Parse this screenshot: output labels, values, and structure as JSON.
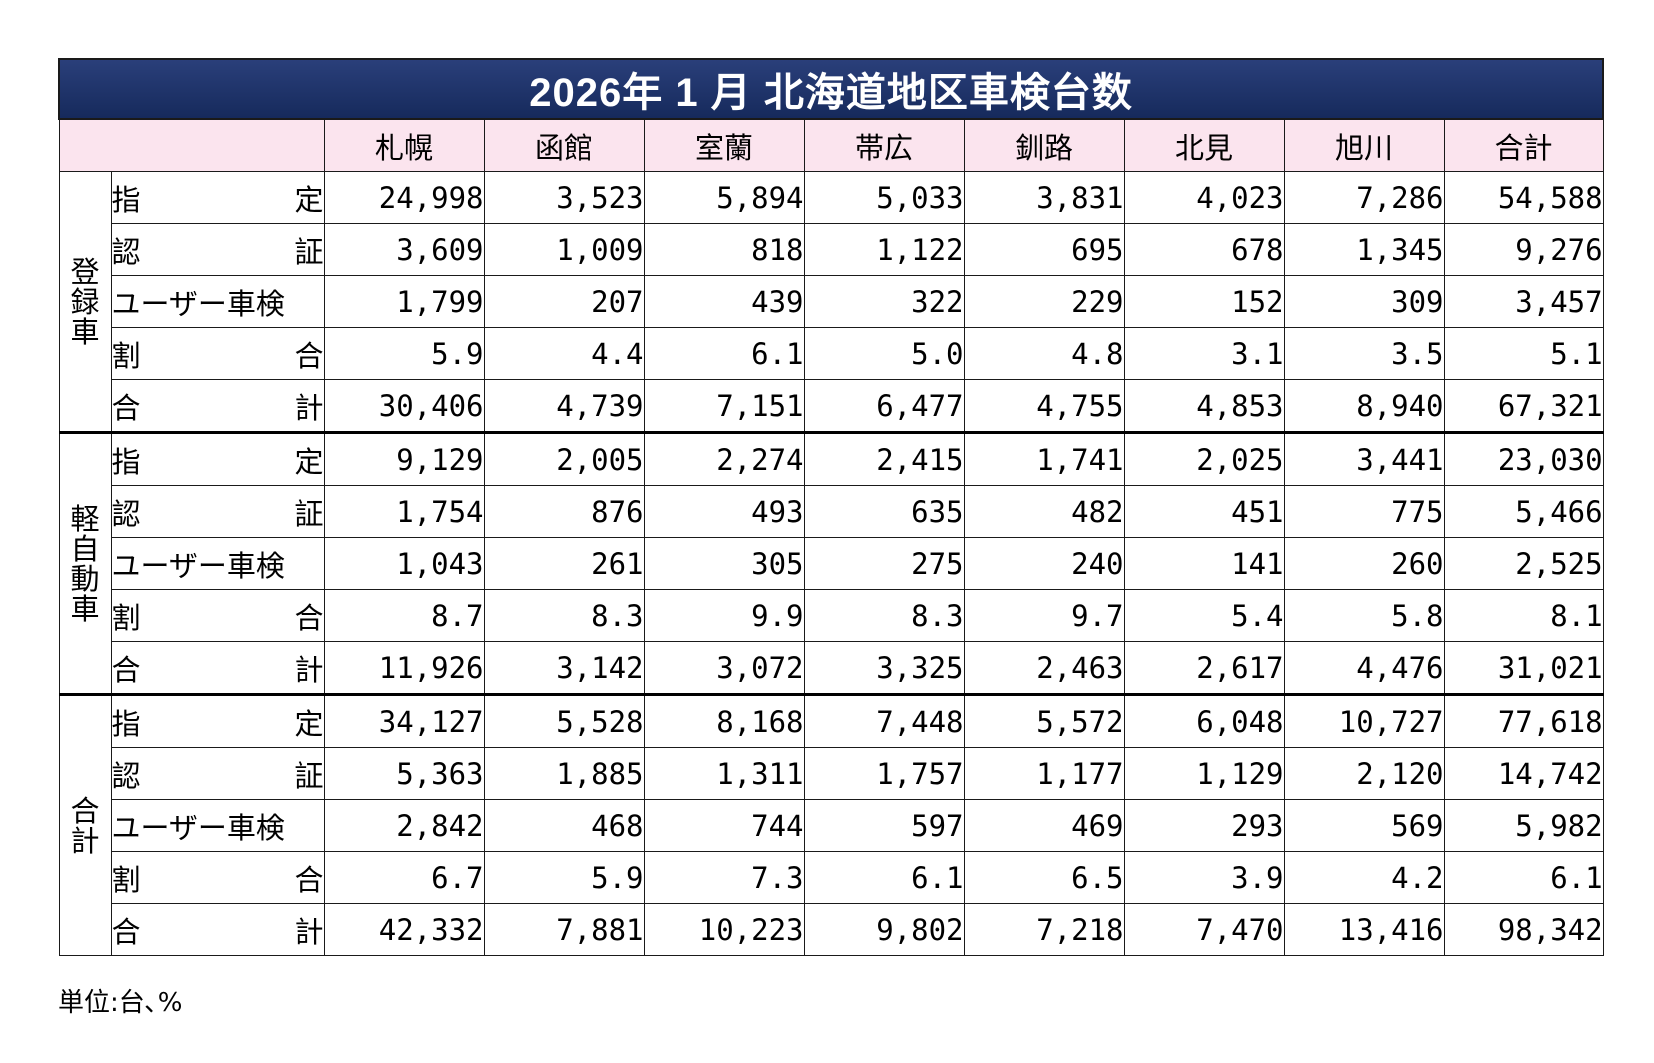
{
  "title": "2026年 1 月  北海道地区車検台数",
  "columns": [
    "札幌",
    "函館",
    "室蘭",
    "帯広",
    "釧路",
    "北見",
    "旭川",
    "合計"
  ],
  "row_labels": [
    "指定",
    "認証",
    "ユーザー車検",
    "割合",
    "合計"
  ],
  "groups": [
    {
      "name": "登録車",
      "rows": [
        [
          "24,998",
          "3,523",
          "5,894",
          "5,033",
          "3,831",
          "4,023",
          "7,286",
          "54,588"
        ],
        [
          "3,609",
          "1,009",
          "818",
          "1,122",
          "695",
          "678",
          "1,345",
          "9,276"
        ],
        [
          "1,799",
          "207",
          "439",
          "322",
          "229",
          "152",
          "309",
          "3,457"
        ],
        [
          "5.9",
          "4.4",
          "6.1",
          "5.0",
          "4.8",
          "3.1",
          "3.5",
          "5.1"
        ],
        [
          "30,406",
          "4,739",
          "7,151",
          "6,477",
          "4,755",
          "4,853",
          "8,940",
          "67,321"
        ]
      ]
    },
    {
      "name": "軽自動車",
      "rows": [
        [
          "9,129",
          "2,005",
          "2,274",
          "2,415",
          "1,741",
          "2,025",
          "3,441",
          "23,030"
        ],
        [
          "1,754",
          "876",
          "493",
          "635",
          "482",
          "451",
          "775",
          "5,466"
        ],
        [
          "1,043",
          "261",
          "305",
          "275",
          "240",
          "141",
          "260",
          "2,525"
        ],
        [
          "8.7",
          "8.3",
          "9.9",
          "8.3",
          "9.7",
          "5.4",
          "5.8",
          "8.1"
        ],
        [
          "11,926",
          "3,142",
          "3,072",
          "3,325",
          "2,463",
          "2,617",
          "4,476",
          "31,021"
        ]
      ]
    },
    {
      "name": "合計",
      "rows": [
        [
          "34,127",
          "5,528",
          "8,168",
          "7,448",
          "5,572",
          "6,048",
          "10,727",
          "77,618"
        ],
        [
          "5,363",
          "1,885",
          "1,311",
          "1,757",
          "1,177",
          "1,129",
          "2,120",
          "14,742"
        ],
        [
          "2,842",
          "468",
          "744",
          "597",
          "469",
          "293",
          "569",
          "5,982"
        ],
        [
          "6.7",
          "5.9",
          "7.3",
          "6.1",
          "6.5",
          "3.9",
          "4.2",
          "6.1"
        ],
        [
          "42,332",
          "7,881",
          "10,223",
          "9,802",
          "7,218",
          "7,470",
          "13,416",
          "98,342"
        ]
      ]
    }
  ],
  "unit_note": "単位:台､%"
}
